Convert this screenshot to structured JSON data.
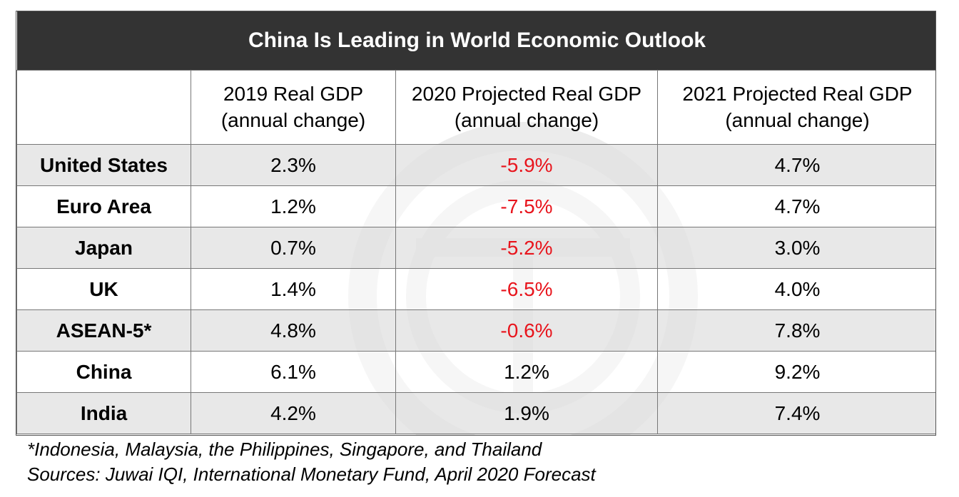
{
  "chart_data": {
    "type": "table",
    "title": "China Is Leading in World Economic Outlook",
    "columns": [
      "",
      "2019 Real GDP (annual change)",
      "2020 Projected Real GDP (annual change)",
      "2021 Projected Real GDP (annual change)"
    ],
    "rows": [
      {
        "label": "United States",
        "values": [
          "2.3%",
          "-5.9%",
          "4.7%"
        ]
      },
      {
        "label": "Euro Area",
        "values": [
          "1.2%",
          "-7.5%",
          "4.7%"
        ]
      },
      {
        "label": "Japan",
        "values": [
          "0.7%",
          "-5.2%",
          "3.0%"
        ]
      },
      {
        "label": "UK",
        "values": [
          "1.4%",
          "-6.5%",
          "4.0%"
        ]
      },
      {
        "label": "ASEAN-5*",
        "values": [
          "4.8%",
          "-0.6%",
          "7.8%"
        ]
      },
      {
        "label": "China",
        "values": [
          "6.1%",
          "1.2%",
          "9.2%"
        ]
      },
      {
        "label": "India",
        "values": [
          "4.2%",
          "1.9%",
          "7.4%"
        ]
      }
    ],
    "negative_color": "#e8141c"
  },
  "footnotes": {
    "asean_note": "*Indonesia, Malaysia, the Philippines, Singapore, and Thailand",
    "sources": "Sources: Juwai IQI, International Monetary Fund, April 2020 Forecast"
  },
  "colors": {
    "header_background": "#333333",
    "header_text": "#ffffff",
    "stripe": "#e2e2e2",
    "negative": "#e8141c"
  }
}
